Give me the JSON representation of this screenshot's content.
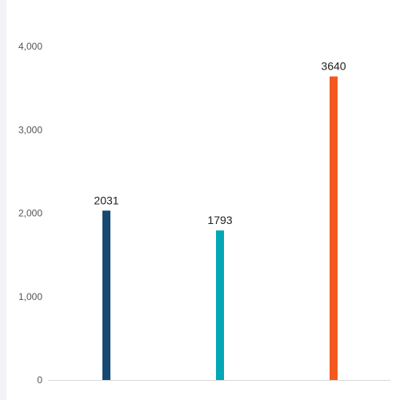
{
  "chart_data": {
    "type": "bar",
    "categories": [
      "",
      "",
      ""
    ],
    "values": [
      2031,
      1793,
      3640
    ],
    "data_labels": [
      "2031",
      "1793",
      "3640"
    ],
    "colors": [
      "#174a72",
      "#00a7b5",
      "#f4581f"
    ],
    "ylim": [
      0,
      4000
    ],
    "yticks": [
      {
        "value": 0,
        "label": "0"
      },
      {
        "value": 1000,
        "label": "1,000"
      },
      {
        "value": 2000,
        "label": "2,000"
      },
      {
        "value": 3000,
        "label": "3,000"
      },
      {
        "value": 4000,
        "label": "4,000"
      }
    ],
    "grid": false,
    "legend": "none"
  }
}
